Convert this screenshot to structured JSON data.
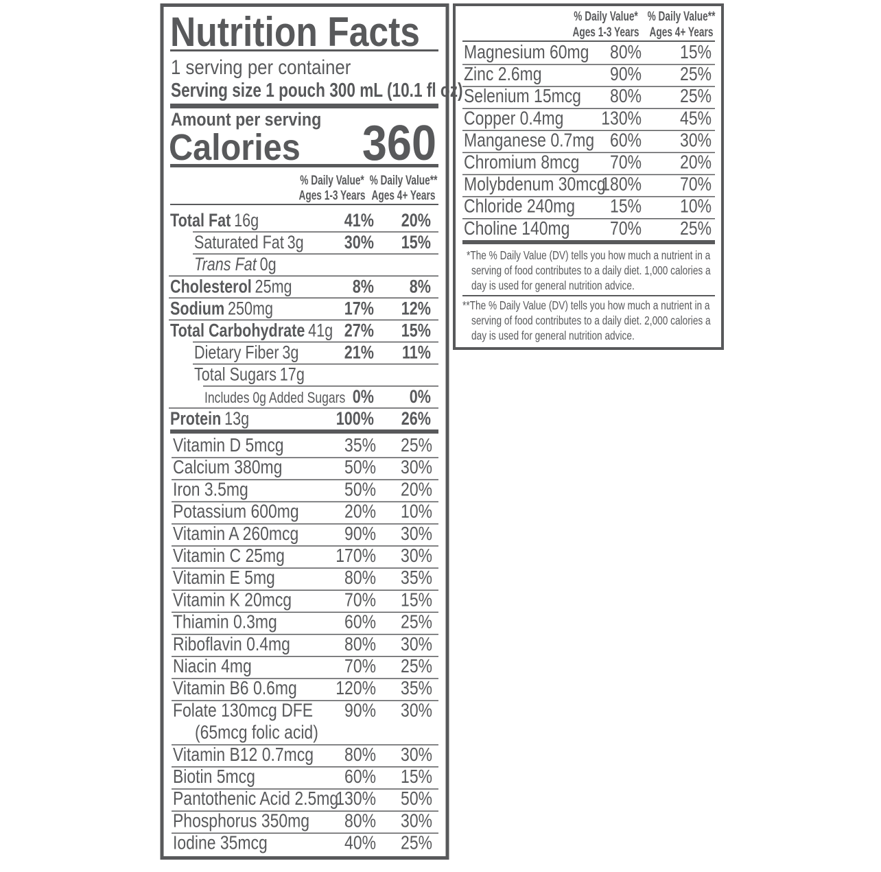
{
  "left": {
    "title": "Nutrition Facts",
    "servings": "1 serving per container",
    "serving_size": {
      "label": "Serving size",
      "value": "1 pouch 300 mL (10.1 fl oz)"
    },
    "amount_per_serving": "Amount per serving",
    "calories": {
      "label": "Calories",
      "value": "360"
    },
    "headers": [
      [
        "% Daily Value*",
        "Ages 1-3 Years"
      ],
      [
        "% Daily Value**",
        "Ages 4+ Years"
      ]
    ],
    "nutrients": [
      {
        "name": "Total Fat",
        "amount": "16g",
        "dv1": "41%",
        "dv2": "20%"
      },
      {
        "name": "Saturated Fat",
        "amount": "3g",
        "dv1": "30%",
        "dv2": "15%"
      },
      {
        "name": "Trans Fat",
        "amount": "0g"
      },
      {
        "name": "Cholesterol",
        "amount": "25mg",
        "dv1": "8%",
        "dv2": "8%"
      },
      {
        "name": "Sodium",
        "amount": "250mg",
        "dv1": "17%",
        "dv2": "12%"
      },
      {
        "name": "Total Carbohydrate",
        "amount": "41g",
        "dv1": "27%",
        "dv2": "15%"
      },
      {
        "name": "Dietary Fiber",
        "amount": "3g",
        "dv1": "21%",
        "dv2": "11%"
      },
      {
        "name": "Total Sugars",
        "amount": "17g"
      },
      {
        "name": "Includes 0g Added Sugars",
        "dv1": "0%",
        "dv2": "0%"
      },
      {
        "name": "Protein",
        "amount": "13g",
        "dv1": "100%",
        "dv2": "26%"
      }
    ],
    "vitamins": [
      {
        "name": "Vitamin D 5mcg",
        "dv1": "35%",
        "dv2": "25%"
      },
      {
        "name": "Calcium 380mg",
        "dv1": "50%",
        "dv2": "30%"
      },
      {
        "name": "Iron 3.5mg",
        "dv1": "50%",
        "dv2": "20%"
      },
      {
        "name": "Potassium 600mg",
        "dv1": "20%",
        "dv2": "10%"
      },
      {
        "name": "Vitamin A 260mcg",
        "dv1": "90%",
        "dv2": "30%"
      },
      {
        "name": "Vitamin C 25mg",
        "dv1": "170%",
        "dv2": "30%"
      },
      {
        "name": "Vitamin E 5mg",
        "dv1": "80%",
        "dv2": "35%"
      },
      {
        "name": "Vitamin K 20mcg",
        "dv1": "70%",
        "dv2": "15%"
      },
      {
        "name": "Thiamin 0.3mg",
        "dv1": "60%",
        "dv2": "25%"
      },
      {
        "name": "Riboflavin 0.4mg",
        "dv1": "80%",
        "dv2": "30%"
      },
      {
        "name": "Niacin 4mg",
        "dv1": "70%",
        "dv2": "25%"
      },
      {
        "name": "Vitamin B6 0.6mg",
        "dv1": "120%",
        "dv2": "35%"
      },
      {
        "name": "Folate 130mcg DFE",
        "note": "(65mcg folic acid)",
        "dv1": "90%",
        "dv2": "30%"
      },
      {
        "name": "Vitamin B12 0.7mcg",
        "dv1": "80%",
        "dv2": "30%"
      },
      {
        "name": "Biotin 5mcg",
        "dv1": "60%",
        "dv2": "15%"
      },
      {
        "name": "Pantothenic Acid 2.5mg",
        "dv1": "130%",
        "dv2": "50%"
      },
      {
        "name": "Phosphorus 350mg",
        "dv1": "80%",
        "dv2": "30%"
      },
      {
        "name": "Iodine 35mcg",
        "dv1": "40%",
        "dv2": "25%"
      }
    ]
  },
  "right": {
    "headers": [
      [
        "% Daily Value*",
        "Ages 1-3 Years"
      ],
      [
        "% Daily Value**",
        "Ages 4+ Years"
      ]
    ],
    "minerals": [
      {
        "name": "Magnesium 60mg",
        "dv1": "80%",
        "dv2": "15%"
      },
      {
        "name": "Zinc 2.6mg",
        "dv1": "90%",
        "dv2": "25%"
      },
      {
        "name": "Selenium 15mcg",
        "dv1": "80%",
        "dv2": "25%"
      },
      {
        "name": "Copper 0.4mg",
        "dv1": "130%",
        "dv2": "45%"
      },
      {
        "name": "Manganese 0.7mg",
        "dv1": "60%",
        "dv2": "30%"
      },
      {
        "name": "Chromium 8mcg",
        "dv1": "70%",
        "dv2": "20%"
      },
      {
        "name": "Molybdenum 30mcg",
        "dv1": "180%",
        "dv2": "70%"
      },
      {
        "name": "Chloride 240mg",
        "dv1": "15%",
        "dv2": "10%"
      },
      {
        "name": "Choline 140mg",
        "dv1": "70%",
        "dv2": "25%"
      }
    ],
    "footnotes": [
      [
        "*The % Daily Value (DV) tells you how much a nutrient in a",
        "serving of food contributes to a daily diet. 1,000 calories a",
        "day is used for general nutrition advice."
      ],
      [
        "**The % Daily Value (DV) tells you how much a nutrient in a",
        "serving of food contributes to a daily diet. 2,000 calories a",
        "day is used for general nutrition advice."
      ]
    ]
  }
}
